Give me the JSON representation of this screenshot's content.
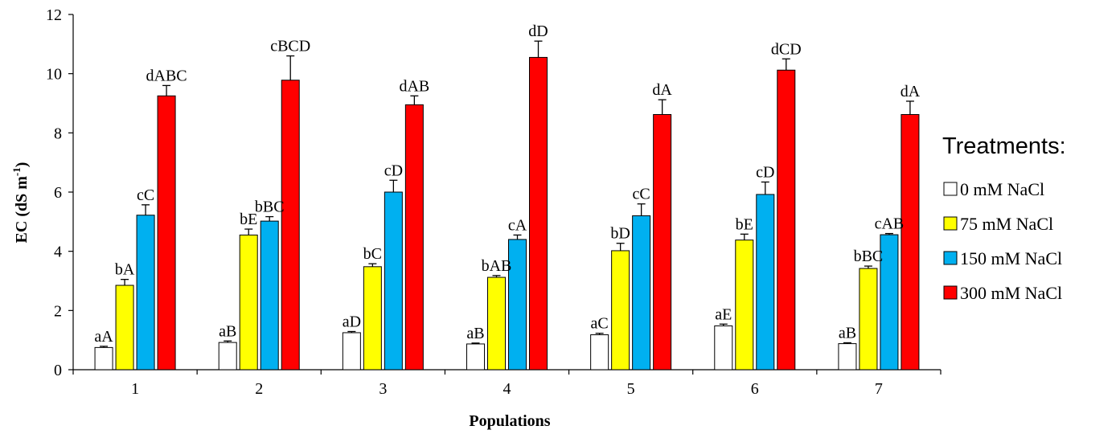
{
  "chart_data": {
    "type": "bar",
    "title": "",
    "xlabel": "Populations",
    "ylabel": "EC (dS m",
    "ylabel_superscript": "-1",
    "ylabel_suffix": ")",
    "ylim": [
      0,
      12
    ],
    "yticks": [
      0,
      2,
      4,
      6,
      8,
      10,
      12
    ],
    "grid": false,
    "legend_placement": "right",
    "legend_title": "Treatments:",
    "categories": [
      "1",
      "2",
      "3",
      "4",
      "5",
      "6",
      "7"
    ],
    "series": [
      {
        "name": "0 mM NaCl",
        "color": "#ffffff",
        "values": [
          0.75,
          0.92,
          1.25,
          0.87,
          1.18,
          1.48,
          0.88
        ],
        "errors": [
          0.04,
          0.05,
          0.04,
          0.03,
          0.05,
          0.06,
          0.03
        ],
        "labels": [
          "aA",
          "aB",
          "aD",
          "aB",
          "aC",
          "aE",
          "aB"
        ]
      },
      {
        "name": "75 mM NaCl",
        "color": "#ffff00",
        "values": [
          2.85,
          4.55,
          3.48,
          3.12,
          4.02,
          4.38,
          3.42
        ],
        "errors": [
          0.2,
          0.2,
          0.1,
          0.06,
          0.25,
          0.2,
          0.08
        ],
        "labels": [
          "bA",
          "bE",
          "bC",
          "bAB",
          "bD",
          "bE",
          "bBC"
        ]
      },
      {
        "name": "150 mM NaCl",
        "color": "#00b0f0",
        "values": [
          5.22,
          5.02,
          6.0,
          4.4,
          5.2,
          5.92,
          4.56
        ],
        "errors": [
          0.35,
          0.15,
          0.4,
          0.15,
          0.4,
          0.42,
          0.04
        ],
        "labels": [
          "cC",
          "bBC",
          "cD",
          "cA",
          "cC",
          "cD",
          "cAB"
        ]
      },
      {
        "name": "300 mM NaCl",
        "color": "#ff0000",
        "values": [
          9.25,
          9.78,
          8.95,
          10.55,
          8.62,
          10.12,
          8.62
        ],
        "errors": [
          0.35,
          0.82,
          0.3,
          0.55,
          0.5,
          0.38,
          0.45
        ],
        "labels": [
          "dABC",
          "cBCD",
          "dAB",
          "dD",
          "dA",
          "dCD",
          "dA"
        ]
      }
    ]
  }
}
